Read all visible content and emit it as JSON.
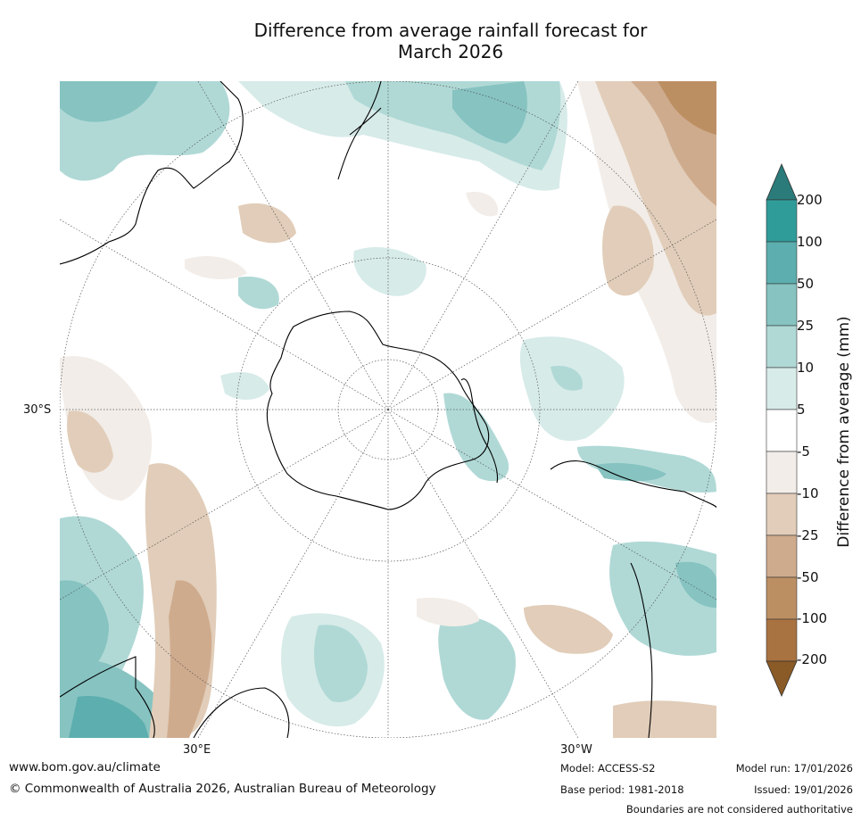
{
  "title_line1": "Difference from average rainfall forecast for",
  "title_line2": "March 2026",
  "axis": {
    "lat_label": "30°S",
    "lon_label_left": "30°E",
    "lon_label_right": "30°W"
  },
  "colorbar": {
    "title": "Difference from average (mm)",
    "ticks": [
      "200",
      "100",
      "50",
      "25",
      "10",
      "5",
      "-5",
      "-10",
      "-25",
      "-50",
      "-100",
      "-200"
    ],
    "colors": {
      "over": "#2a7b79",
      "c200": "#309c9a",
      "c100": "#5daeae",
      "c50": "#86c3c1",
      "c25": "#b0d9d6",
      "c10": "#d7ebe9",
      "c5": "#ffffff",
      "cm5": "#f2ede8",
      "cm10": "#e1cdb9",
      "cm25": "#cfab8d",
      "cm50": "#bc8f63",
      "cm100": "#a97341",
      "under": "#8a5a27"
    }
  },
  "footer": {
    "url": "www.bom.gov.au/climate",
    "copyright": "© Commonwealth of Australia 2026, Australian Bureau of Meteorology",
    "model": "Model: ACCESS-S2",
    "model_run": "Model run: 17/01/2026",
    "base_period": "Base period: 1981-2018",
    "issued": "Issued: 19/01/2026",
    "disclaimer": "Boundaries are not considered authoritative"
  }
}
